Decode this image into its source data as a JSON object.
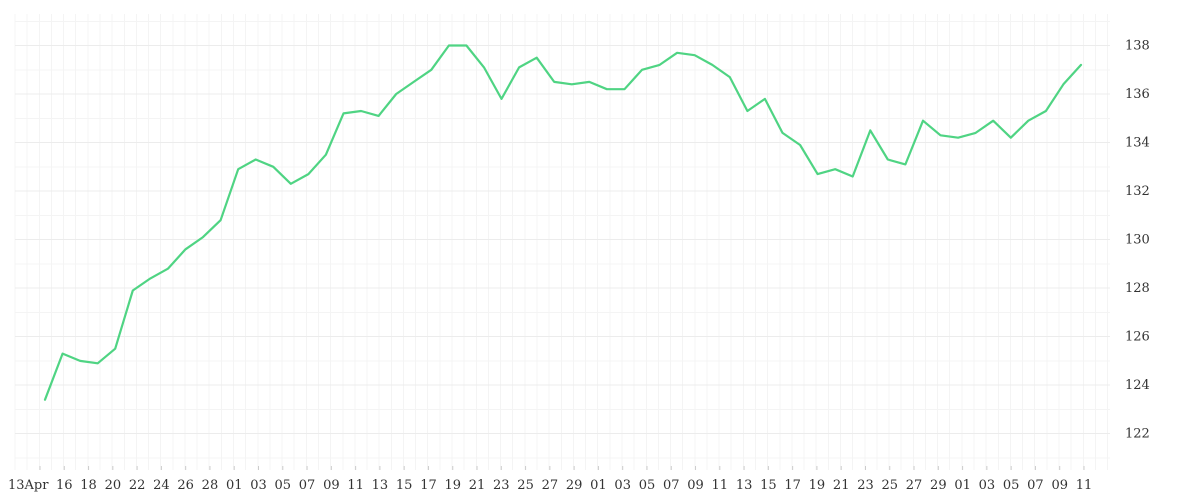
{
  "chart_data": {
    "type": "line",
    "title": "",
    "xlabel": "",
    "ylabel": "",
    "grid": true,
    "y_axis_side": "right",
    "ylim": [
      120.5,
      139.3
    ],
    "y_ticks": [
      122,
      124,
      126,
      128,
      130,
      132,
      134,
      136,
      138
    ],
    "x_tick_labels": [
      "13Apr",
      "16",
      "18",
      "20",
      "22",
      "24",
      "26",
      "28",
      "01",
      "03",
      "05",
      "07",
      "09",
      "11",
      "13",
      "15",
      "17",
      "19",
      "21",
      "23",
      "25",
      "27",
      "29",
      "01",
      "03",
      "05",
      "07",
      "09",
      "11",
      "13",
      "15",
      "17",
      "19",
      "21",
      "23",
      "25",
      "27",
      "29",
      "01",
      "03",
      "05",
      "07",
      "09",
      "11"
    ],
    "colors": {
      "line": "#4fd483",
      "grid": "#ececec",
      "text": "#333333"
    },
    "series": [
      {
        "values": [
          123.4,
          125.3,
          125.0,
          124.9,
          125.5,
          127.9,
          128.4,
          128.8,
          129.6,
          130.1,
          130.8,
          132.9,
          133.3,
          133.0,
          132.3,
          132.7,
          133.5,
          135.2,
          135.3,
          135.1,
          136.0,
          136.5,
          137.0,
          138.0,
          138.0,
          137.1,
          135.8,
          137.1,
          137.5,
          136.5,
          136.4,
          136.5,
          136.2,
          136.2,
          137.0,
          137.2,
          137.7,
          137.6,
          137.2,
          136.7,
          135.3,
          135.8,
          134.4,
          133.9,
          132.7,
          132.9,
          132.6,
          134.5,
          133.3,
          133.1,
          134.9,
          134.3,
          134.2,
          134.4,
          134.9,
          134.2,
          134.9,
          135.3,
          136.4,
          137.2
        ]
      }
    ]
  }
}
